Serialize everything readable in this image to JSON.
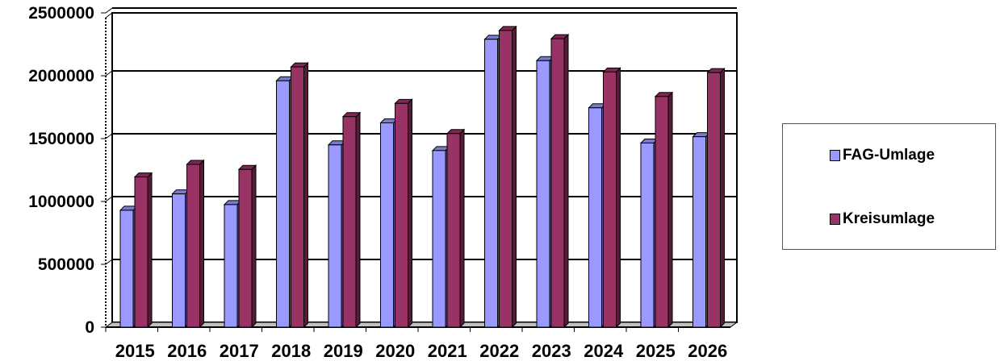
{
  "chart_data": {
    "type": "bar",
    "title": "",
    "xlabel": "",
    "ylabel": "",
    "categories": [
      "2015",
      "2016",
      "2017",
      "2018",
      "2019",
      "2020",
      "2021",
      "2022",
      "2023",
      "2024",
      "2025",
      "2026"
    ],
    "series": [
      {
        "name": "FAG-Umlage",
        "color": "#9999ff",
        "values": [
          930000,
          1060000,
          975000,
          1960000,
          1450000,
          1625000,
          1405000,
          2290000,
          2120000,
          1745000,
          1465000,
          1515000
        ]
      },
      {
        "name": "Kreisumlage",
        "color": "#993366",
        "values": [
          1195000,
          1295000,
          1255000,
          2070000,
          1675000,
          1780000,
          1540000,
          2360000,
          2295000,
          2030000,
          1835000,
          2025000
        ]
      }
    ],
    "ylim": [
      0,
      2500000
    ],
    "yticks": [
      "0",
      "500000",
      "1000000",
      "1500000",
      "2000000",
      "2500000"
    ],
    "grid": true,
    "legend_position": "right"
  }
}
